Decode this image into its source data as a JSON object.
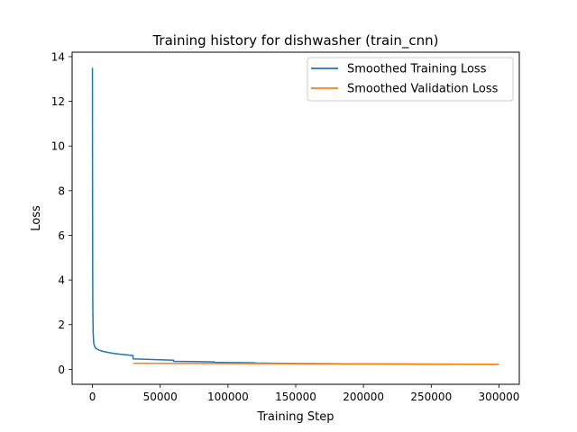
{
  "chart_data": {
    "type": "line",
    "title": "Training history for dishwasher (train_cnn)",
    "xlabel": "Training Step",
    "ylabel": "Loss",
    "xlim": [
      -15000,
      315000
    ],
    "ylim": [
      -0.67,
      14.2
    ],
    "xticks": [
      0,
      50000,
      100000,
      150000,
      200000,
      250000,
      300000
    ],
    "yticks": [
      0,
      2,
      4,
      6,
      8,
      10,
      12,
      14
    ],
    "grid": false,
    "legend_position": "top-right",
    "series": [
      {
        "name": "Smoothed Training Loss",
        "color": "#1f77b4",
        "x": [
          0,
          50,
          100,
          200,
          300,
          500,
          800,
          1000,
          1500,
          2000,
          3000,
          5000,
          8000,
          12000,
          16000,
          20000,
          25000,
          29900,
          30000,
          40000,
          50000,
          59900,
          60000,
          75000,
          89900,
          90000,
          105000,
          119900,
          120000,
          135000,
          150000,
          180000,
          210000,
          240000,
          270000,
          300000
        ],
        "y": [
          13.5,
          10.0,
          7.0,
          4.2,
          2.6,
          1.7,
          1.3,
          1.15,
          1.05,
          0.98,
          0.92,
          0.86,
          0.8,
          0.75,
          0.71,
          0.68,
          0.65,
          0.62,
          0.47,
          0.45,
          0.43,
          0.41,
          0.36,
          0.345,
          0.33,
          0.31,
          0.3,
          0.29,
          0.28,
          0.27,
          0.262,
          0.25,
          0.24,
          0.232,
          0.225,
          0.22
        ]
      },
      {
        "name": "Smoothed Validation Loss",
        "color": "#ff7f0e",
        "x": [
          30000,
          60000,
          90000,
          120000,
          150000,
          180000,
          210000,
          240000,
          270000,
          300000
        ],
        "y": [
          0.27,
          0.265,
          0.26,
          0.255,
          0.25,
          0.245,
          0.24,
          0.235,
          0.23,
          0.225
        ]
      }
    ]
  }
}
